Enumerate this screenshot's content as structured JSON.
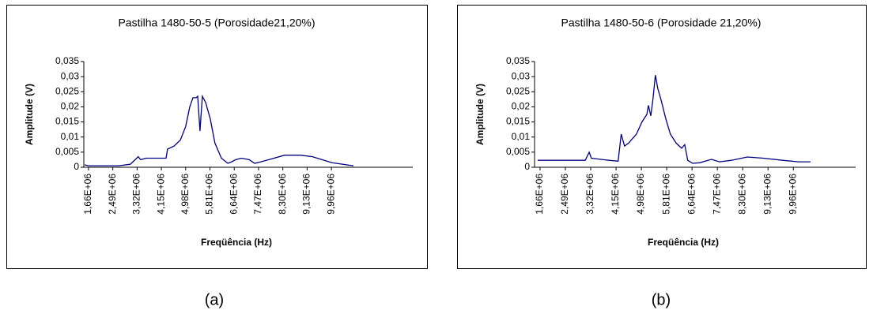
{
  "chart_data": [
    {
      "type": "line",
      "title": "Pastilha 1480-50-5 (Porosidade21,20%)",
      "x_label": "Freqüência (Hz)",
      "y_label": "Amplitude (V)",
      "color": "#000080",
      "x": [
        1530000,
        1660000,
        2690000,
        3090000,
        3360000,
        3440000,
        3630000,
        4040000,
        4310000,
        4360000,
        4580000,
        4800000,
        4980000,
        5120000,
        5230000,
        5340000,
        5390000,
        5470000,
        5550000,
        5660000,
        5820000,
        5980000,
        6200000,
        6420000,
        6550000,
        6690000,
        6880000,
        7150000,
        7340000,
        7550000,
        7820000,
        8360000,
        8900000,
        9310000,
        9980000,
        10710000
      ],
      "values": [
        0.0008,
        0.0005,
        0.0005,
        0.001,
        0.0035,
        0.0025,
        0.003,
        0.003,
        0.003,
        0.006,
        0.007,
        0.009,
        0.0135,
        0.02,
        0.023,
        0.023,
        0.0235,
        0.012,
        0.0235,
        0.0215,
        0.016,
        0.008,
        0.003,
        0.0013,
        0.0018,
        0.0025,
        0.003,
        0.0025,
        0.0013,
        0.0018,
        0.0025,
        0.004,
        0.004,
        0.0035,
        0.0015,
        0.0005
      ],
      "xlim": [
        1500000,
        12740000
      ],
      "xticks": [
        {
          "value": 1660000,
          "label": "1,66E+06"
        },
        {
          "value": 2490000,
          "label": "2,49E+06"
        },
        {
          "value": 3320000,
          "label": "3,32E+06"
        },
        {
          "value": 4150000,
          "label": "4,15E+06"
        },
        {
          "value": 4980000,
          "label": "4,98E+06"
        },
        {
          "value": 5810000,
          "label": "5,81E+06"
        },
        {
          "value": 6640000,
          "label": "6,64E+06"
        },
        {
          "value": 7470000,
          "label": "7,47E+06"
        },
        {
          "value": 8300000,
          "label": "8,30E+06"
        },
        {
          "value": 9130000,
          "label": "9,13E+06"
        },
        {
          "value": 9960000,
          "label": "9,96E+06"
        }
      ],
      "ylim": [
        0,
        0.035
      ],
      "yticks": [
        0,
        {
          "value": 0.005,
          "label": "0,005"
        },
        {
          "value": 0.01,
          "label": "0,01"
        },
        {
          "value": 0.015,
          "label": "0,015"
        },
        {
          "value": 0.02,
          "label": "0,02"
        },
        {
          "value": 0.025,
          "label": "0,025"
        },
        {
          "value": 0.03,
          "label": "0,03"
        },
        {
          "value": 0.035,
          "label": "0,035"
        }
      ]
    },
    {
      "type": "line",
      "title": "Pastilha 1480-50-6 (Porosidade 21,20%)",
      "x_label": "Freqüência (Hz)",
      "y_label": "Amplitude (V)",
      "color": "#000080",
      "x": [
        1580000,
        3140000,
        3270000,
        3340000,
        3910000,
        4220000,
        4320000,
        4430000,
        4560000,
        4820000,
        5000000,
        5160000,
        5210000,
        5290000,
        5360000,
        5440000,
        5520000,
        5620000,
        5780000,
        5930000,
        6120000,
        6300000,
        6400000,
        6500000,
        6660000,
        6890000,
        7280000,
        7540000,
        7930000,
        8450000,
        8970000,
        9610000,
        10130000,
        10520000
      ],
      "values": [
        0.0023,
        0.0023,
        0.005,
        0.003,
        0.0023,
        0.002,
        0.011,
        0.007,
        0.008,
        0.011,
        0.015,
        0.0175,
        0.0205,
        0.017,
        0.0225,
        0.0305,
        0.026,
        0.0225,
        0.016,
        0.011,
        0.008,
        0.0063,
        0.0075,
        0.0023,
        0.0013,
        0.0015,
        0.0026,
        0.0018,
        0.0023,
        0.0034,
        0.003,
        0.0023,
        0.0018,
        0.0018
      ],
      "xlim": [
        1480000,
        12000000
      ],
      "xticks": [
        {
          "value": 1660000,
          "label": "1,66E+06"
        },
        {
          "value": 2490000,
          "label": "2,49E+06"
        },
        {
          "value": 3320000,
          "label": "3,32E+06"
        },
        {
          "value": 4150000,
          "label": "4,15E+06"
        },
        {
          "value": 4980000,
          "label": "4,98E+06"
        },
        {
          "value": 5810000,
          "label": "5,81E+06"
        },
        {
          "value": 6640000,
          "label": "6,64E+06"
        },
        {
          "value": 7470000,
          "label": "7,47E+06"
        },
        {
          "value": 8300000,
          "label": "8,30E+06"
        },
        {
          "value": 9130000,
          "label": "9,13E+06"
        },
        {
          "value": 9960000,
          "label": "9,96E+06"
        }
      ],
      "ylim": [
        0,
        0.035
      ],
      "yticks": [
        0,
        {
          "value": 0.005,
          "label": "0,005"
        },
        {
          "value": 0.01,
          "label": "0,01"
        },
        {
          "value": 0.015,
          "label": "0,015"
        },
        {
          "value": 0.02,
          "label": "0,02"
        },
        {
          "value": 0.025,
          "label": "0,025"
        },
        {
          "value": 0.03,
          "label": "0,03"
        },
        {
          "value": 0.035,
          "label": "0,035"
        }
      ]
    }
  ],
  "captions": [
    "(a)",
    "(b)"
  ]
}
